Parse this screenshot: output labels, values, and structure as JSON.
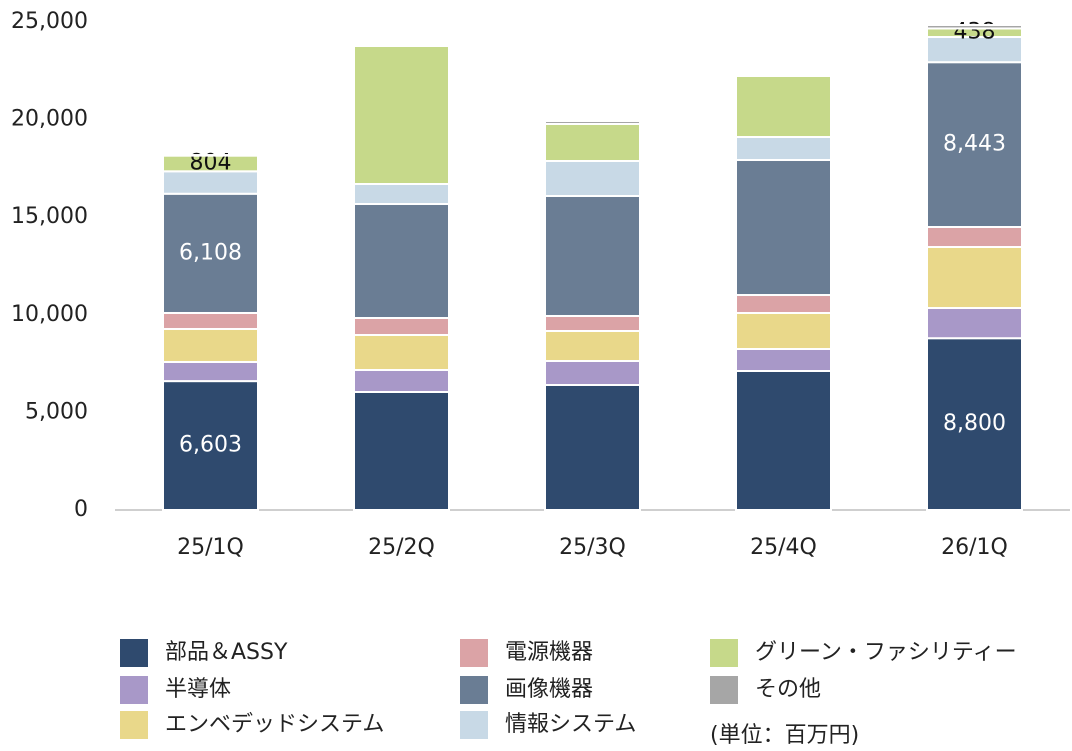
{
  "chart_data": {
    "type": "stacked_bar",
    "categories": [
      "25/1Q",
      "25/2Q",
      "25/3Q",
      "25/4Q",
      "26/1Q"
    ],
    "ylim": [
      0,
      25000
    ],
    "yticks": [
      0,
      {
        "value": 5000,
        "label": "5,000"
      },
      {
        "value": 10000,
        "label": "10,000"
      },
      {
        "value": 15000,
        "label": "15,000"
      },
      {
        "value": 20000,
        "label": "20,000"
      },
      {
        "value": 25000,
        "label": "25,000"
      }
    ],
    "series": [
      {
        "name": "部品＆ASSY",
        "color": "#2f4a6e",
        "values": [
          6603,
          6045,
          6404,
          7121,
          8800
        ],
        "value_labels": [
          "6,603",
          null,
          null,
          null,
          "8,800"
        ]
      },
      {
        "name": "半導体",
        "color": "#a898c8",
        "values": [
          980,
          1127,
          1229,
          1127,
          1548
        ]
      },
      {
        "name": "エンベデッドシステム",
        "color": "#e9d88a",
        "values": [
          1690,
          1793,
          1537,
          1844,
          3125
        ]
      },
      {
        "name": "電源機器",
        "color": "#dba3a6",
        "values": [
          820,
          871,
          769,
          922,
          1025
        ]
      },
      {
        "name": "画像機器",
        "color": "#6a7d94",
        "values": [
          6108,
          5840,
          6147,
          6916,
          8443
        ],
        "value_labels": [
          "6,108",
          null,
          null,
          null,
          "8,443"
        ]
      },
      {
        "name": "情報システム",
        "color": "#c8d9e6",
        "values": [
          1150,
          1025,
          1793,
          1179,
          1290
        ]
      },
      {
        "name": "グリーン・ファシリティー",
        "color": "#c6d98a",
        "values": [
          804,
          7069,
          1896,
          3125,
          438
        ],
        "value_labels": [
          804,
          null,
          null,
          null,
          438
        ]
      },
      {
        "name": "その他",
        "color": "#a6a6a6",
        "values": [
          30,
          0,
          153,
          0,
          177
        ]
      }
    ],
    "note": "(単位：百万円)"
  }
}
